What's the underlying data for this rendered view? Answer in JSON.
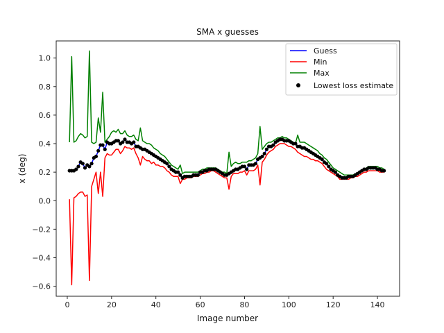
{
  "chart_data": {
    "type": "line",
    "title": "SMA x guesses",
    "xlabel": "Image number",
    "ylabel": "x (deg)",
    "xlim": [
      -5,
      150
    ],
    "ylim": [
      -0.67,
      1.12
    ],
    "xticks": [
      0,
      20,
      40,
      60,
      80,
      100,
      120,
      140
    ],
    "yticks": [
      -0.6,
      -0.4,
      -0.2,
      0.0,
      0.2,
      0.4,
      0.6,
      0.8,
      1.0
    ],
    "xtick_labels": [
      "0",
      "20",
      "40",
      "60",
      "80",
      "100",
      "120",
      "140"
    ],
    "ytick_labels": [
      "−0.6",
      "−0.4",
      "−0.2",
      "0.0",
      "0.2",
      "0.4",
      "0.6",
      "0.8",
      "1.0"
    ],
    "grid": false,
    "legend_position": "top-right",
    "colors": {
      "guess": "#0000ff",
      "min": "#ff0000",
      "max": "#008000",
      "scatter": "#000000"
    },
    "x": [
      1,
      2,
      3,
      4,
      5,
      6,
      7,
      8,
      9,
      10,
      11,
      12,
      13,
      14,
      15,
      16,
      17,
      18,
      19,
      20,
      21,
      22,
      23,
      24,
      25,
      26,
      27,
      28,
      29,
      30,
      31,
      32,
      33,
      34,
      35,
      36,
      37,
      38,
      39,
      40,
      41,
      42,
      43,
      44,
      45,
      46,
      47,
      48,
      49,
      50,
      51,
      52,
      53,
      54,
      55,
      56,
      57,
      58,
      59,
      60,
      61,
      62,
      63,
      64,
      65,
      66,
      67,
      68,
      69,
      70,
      71,
      72,
      73,
      74,
      75,
      76,
      77,
      78,
      79,
      80,
      81,
      82,
      83,
      84,
      85,
      86,
      87,
      88,
      89,
      90,
      91,
      92,
      93,
      94,
      95,
      96,
      97,
      98,
      99,
      100,
      101,
      102,
      103,
      104,
      105,
      106,
      107,
      108,
      109,
      110,
      111,
      112,
      113,
      114,
      115,
      116,
      117,
      118,
      119,
      120,
      121,
      122,
      123,
      124,
      125,
      126,
      127,
      128,
      129,
      130,
      131,
      132,
      133,
      134,
      135,
      136,
      137,
      138,
      139,
      140,
      141,
      142,
      143
    ],
    "series": [
      {
        "name": "Guess",
        "values": [
          0.21,
          0.21,
          0.21,
          0.22,
          0.24,
          0.27,
          0.26,
          0.23,
          0.25,
          0.24,
          0.26,
          0.3,
          0.31,
          0.35,
          0.39,
          0.39,
          0.36,
          0.41,
          0.4,
          0.4,
          0.41,
          0.42,
          0.42,
          0.4,
          0.41,
          0.43,
          0.41,
          0.41,
          0.4,
          0.41,
          0.38,
          0.38,
          0.37,
          0.36,
          0.36,
          0.35,
          0.34,
          0.33,
          0.32,
          0.31,
          0.3,
          0.29,
          0.28,
          0.27,
          0.26,
          0.24,
          0.22,
          0.21,
          0.2,
          0.2,
          0.18,
          0.16,
          0.17,
          0.17,
          0.17,
          0.17,
          0.18,
          0.18,
          0.18,
          0.2,
          0.2,
          0.21,
          0.21,
          0.22,
          0.22,
          0.22,
          0.22,
          0.21,
          0.2,
          0.19,
          0.18,
          0.18,
          0.19,
          0.2,
          0.21,
          0.22,
          0.22,
          0.23,
          0.24,
          0.24,
          0.22,
          0.25,
          0.25,
          0.25,
          0.26,
          0.29,
          0.3,
          0.31,
          0.33,
          0.36,
          0.38,
          0.38,
          0.39,
          0.41,
          0.42,
          0.43,
          0.43,
          0.42,
          0.42,
          0.42,
          0.41,
          0.4,
          0.4,
          0.38,
          0.38,
          0.37,
          0.37,
          0.36,
          0.35,
          0.34,
          0.33,
          0.32,
          0.31,
          0.3,
          0.29,
          0.27,
          0.26,
          0.24,
          0.22,
          0.21,
          0.2,
          0.18,
          0.17,
          0.16,
          0.16,
          0.16,
          0.17,
          0.17,
          0.17,
          0.18,
          0.19,
          0.2,
          0.21,
          0.22,
          0.22,
          0.23,
          0.23,
          0.23,
          0.23,
          0.22,
          0.22,
          0.21,
          0.21
        ]
      },
      {
        "name": "Min",
        "values": [
          0.01,
          -0.59,
          0.02,
          0.03,
          0.05,
          0.06,
          0.06,
          0.03,
          0.04,
          -0.56,
          0.1,
          0.15,
          0.2,
          0.05,
          0.2,
          0.03,
          0.3,
          0.33,
          0.32,
          0.32,
          0.34,
          0.36,
          0.36,
          0.33,
          0.35,
          0.38,
          0.37,
          0.37,
          0.36,
          0.37,
          0.33,
          0.3,
          0.25,
          0.31,
          0.29,
          0.28,
          0.28,
          0.26,
          0.27,
          0.25,
          0.25,
          0.24,
          0.24,
          0.23,
          0.21,
          0.2,
          0.18,
          0.17,
          0.17,
          0.17,
          0.12,
          0.15,
          0.15,
          0.16,
          0.16,
          0.16,
          0.17,
          0.17,
          0.17,
          0.18,
          0.19,
          0.19,
          0.2,
          0.2,
          0.21,
          0.21,
          0.2,
          0.19,
          0.18,
          0.17,
          0.16,
          0.16,
          0.08,
          0.17,
          0.19,
          0.19,
          0.19,
          0.2,
          0.2,
          0.21,
          0.18,
          0.21,
          0.21,
          0.21,
          0.22,
          0.25,
          0.11,
          0.27,
          0.29,
          0.32,
          0.34,
          0.35,
          0.36,
          0.38,
          0.39,
          0.4,
          0.4,
          0.4,
          0.39,
          0.38,
          0.38,
          0.37,
          0.36,
          0.34,
          0.33,
          0.32,
          0.31,
          0.31,
          0.3,
          0.29,
          0.29,
          0.28,
          0.28,
          0.27,
          0.26,
          0.24,
          0.22,
          0.21,
          0.2,
          0.19,
          0.18,
          0.17,
          0.15,
          0.15,
          0.15,
          0.15,
          0.15,
          0.16,
          0.16,
          0.17,
          0.17,
          0.18,
          0.19,
          0.2,
          0.2,
          0.21,
          0.21,
          0.21,
          0.21,
          0.21,
          0.2,
          0.2,
          0.2
        ]
      },
      {
        "name": "Max",
        "values": [
          0.41,
          1.01,
          0.41,
          0.42,
          0.45,
          0.47,
          0.46,
          0.44,
          0.45,
          1.05,
          0.41,
          0.4,
          0.41,
          0.58,
          0.48,
          0.76,
          0.41,
          0.43,
          0.45,
          0.48,
          0.49,
          0.48,
          0.5,
          0.47,
          0.47,
          0.49,
          0.46,
          0.45,
          0.45,
          0.46,
          0.43,
          0.42,
          0.51,
          0.42,
          0.41,
          0.4,
          0.4,
          0.39,
          0.37,
          0.36,
          0.35,
          0.33,
          0.32,
          0.31,
          0.29,
          0.27,
          0.25,
          0.24,
          0.23,
          0.22,
          0.25,
          0.19,
          0.2,
          0.2,
          0.2,
          0.2,
          0.2,
          0.2,
          0.2,
          0.21,
          0.22,
          0.22,
          0.23,
          0.23,
          0.23,
          0.23,
          0.23,
          0.22,
          0.21,
          0.2,
          0.2,
          0.19,
          0.34,
          0.24,
          0.26,
          0.27,
          0.26,
          0.26,
          0.27,
          0.27,
          0.27,
          0.28,
          0.28,
          0.29,
          0.3,
          0.33,
          0.52,
          0.36,
          0.38,
          0.4,
          0.41,
          0.41,
          0.42,
          0.43,
          0.44,
          0.44,
          0.45,
          0.44,
          0.44,
          0.43,
          0.42,
          0.41,
          0.4,
          0.46,
          0.41,
          0.41,
          0.41,
          0.4,
          0.39,
          0.38,
          0.37,
          0.36,
          0.35,
          0.33,
          0.32,
          0.3,
          0.29,
          0.27,
          0.25,
          0.23,
          0.22,
          0.21,
          0.2,
          0.19,
          0.18,
          0.18,
          0.18,
          0.18,
          0.18,
          0.19,
          0.19,
          0.2,
          0.21,
          0.22,
          0.23,
          0.24,
          0.24,
          0.24,
          0.24,
          0.24,
          0.23,
          0.23,
          0.22
        ]
      }
    ],
    "scatter": {
      "name": "Lowest loss estimate",
      "note_same_as": "Guess"
    }
  }
}
